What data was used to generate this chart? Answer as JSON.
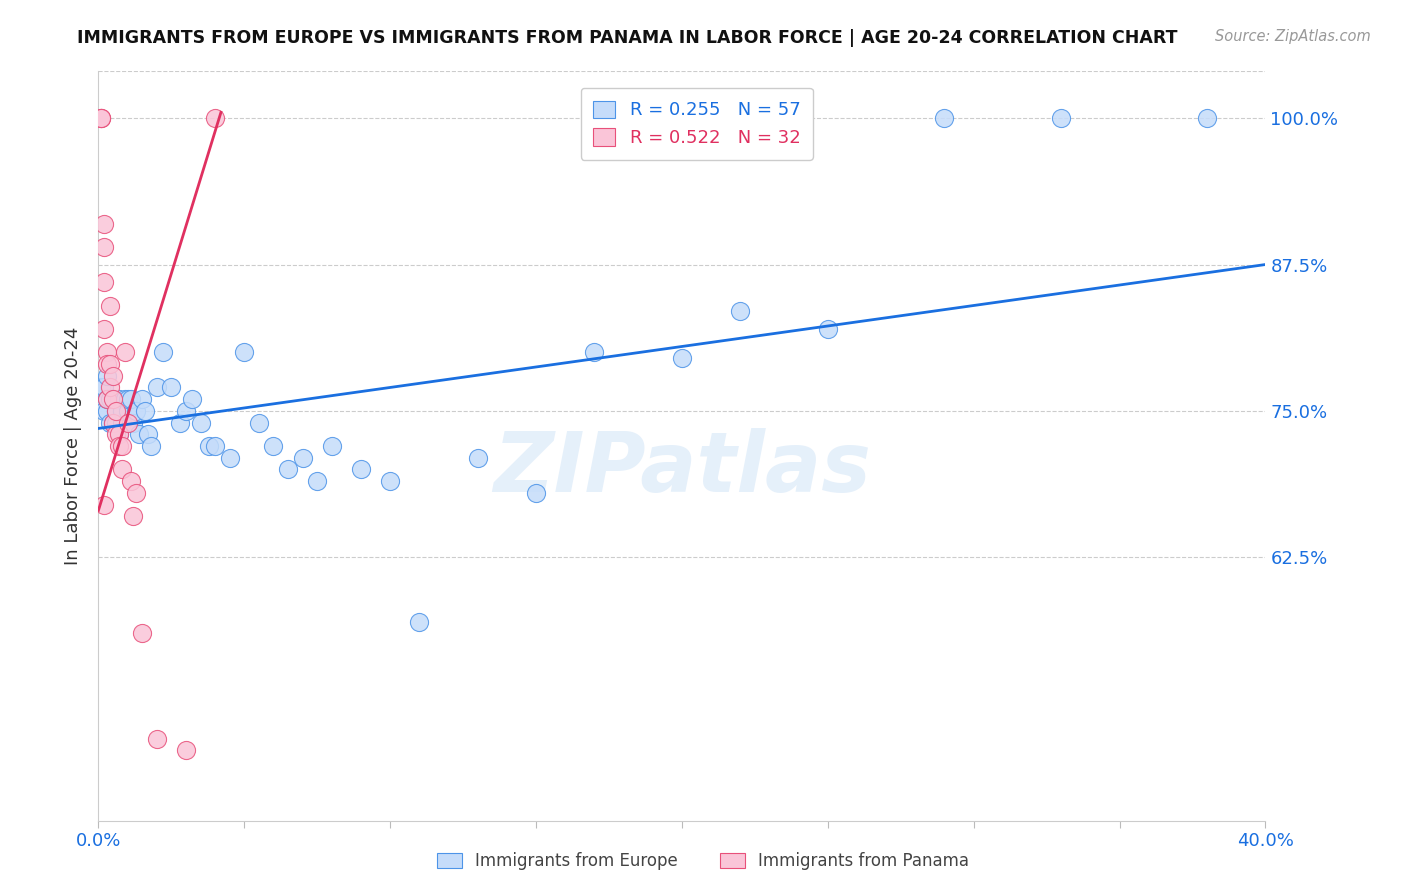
{
  "title": "IMMIGRANTS FROM EUROPE VS IMMIGRANTS FROM PANAMA IN LABOR FORCE | AGE 20-24 CORRELATION CHART",
  "source": "Source: ZipAtlas.com",
  "ylabel": "In Labor Force | Age 20-24",
  "watermark": "ZIPatlas",
  "xlim": [
    0.0,
    0.4
  ],
  "ylim": [
    0.4,
    1.04
  ],
  "yticks": [
    0.625,
    0.75,
    0.875,
    1.0
  ],
  "ytick_labels": [
    "62.5%",
    "75.0%",
    "87.5%",
    "100.0%"
  ],
  "xticks": [
    0.0,
    0.05,
    0.1,
    0.15,
    0.2,
    0.25,
    0.3,
    0.35,
    0.4
  ],
  "xtick_labels": [
    "0.0%",
    "",
    "",
    "",
    "",
    "",
    "",
    "",
    "40.0%"
  ],
  "blue_fill": "#c5dcfa",
  "pink_fill": "#fac5d8",
  "blue_edge": "#4d94e8",
  "pink_edge": "#e8507a",
  "blue_line_color": "#1a6fe0",
  "pink_line_color": "#e03060",
  "blue_R": 0.255,
  "blue_N": 57,
  "pink_R": 0.522,
  "pink_N": 32,
  "europe_x": [
    0.001,
    0.001,
    0.002,
    0.002,
    0.003,
    0.003,
    0.003,
    0.004,
    0.004,
    0.005,
    0.005,
    0.006,
    0.006,
    0.007,
    0.007,
    0.008,
    0.008,
    0.009,
    0.01,
    0.01,
    0.011,
    0.012,
    0.013,
    0.014,
    0.015,
    0.016,
    0.017,
    0.018,
    0.02,
    0.022,
    0.025,
    0.028,
    0.03,
    0.032,
    0.035,
    0.038,
    0.04,
    0.045,
    0.05,
    0.055,
    0.06,
    0.065,
    0.07,
    0.075,
    0.08,
    0.09,
    0.1,
    0.11,
    0.13,
    0.15,
    0.17,
    0.2,
    0.22,
    0.25,
    0.29,
    0.33,
    0.38
  ],
  "europe_y": [
    0.76,
    0.77,
    0.75,
    0.77,
    0.75,
    0.76,
    0.78,
    0.74,
    0.76,
    0.74,
    0.76,
    0.74,
    0.75,
    0.73,
    0.76,
    0.74,
    0.75,
    0.76,
    0.75,
    0.76,
    0.76,
    0.74,
    0.75,
    0.73,
    0.76,
    0.75,
    0.73,
    0.72,
    0.77,
    0.8,
    0.77,
    0.74,
    0.75,
    0.76,
    0.74,
    0.72,
    0.72,
    0.71,
    0.8,
    0.74,
    0.72,
    0.7,
    0.71,
    0.69,
    0.72,
    0.7,
    0.69,
    0.57,
    0.71,
    0.68,
    0.8,
    0.795,
    0.835,
    0.82,
    1.0,
    1.0,
    1.0
  ],
  "panama_x": [
    0.001,
    0.001,
    0.001,
    0.002,
    0.002,
    0.002,
    0.002,
    0.003,
    0.003,
    0.003,
    0.004,
    0.004,
    0.004,
    0.005,
    0.005,
    0.005,
    0.006,
    0.006,
    0.007,
    0.007,
    0.008,
    0.008,
    0.009,
    0.01,
    0.011,
    0.012,
    0.013,
    0.015,
    0.02,
    0.03,
    0.04,
    0.002
  ],
  "panama_y": [
    1.0,
    1.0,
    1.0,
    0.91,
    0.89,
    0.86,
    0.82,
    0.8,
    0.79,
    0.76,
    0.79,
    0.77,
    0.84,
    0.76,
    0.78,
    0.74,
    0.75,
    0.73,
    0.73,
    0.72,
    0.72,
    0.7,
    0.8,
    0.74,
    0.69,
    0.66,
    0.68,
    0.56,
    0.47,
    0.46,
    1.0,
    0.67
  ],
  "pink_line_x0": 0.0,
  "pink_line_y0": 0.665,
  "pink_line_x1": 0.042,
  "pink_line_y1": 1.005,
  "blue_line_x0": 0.0,
  "blue_line_y0": 0.735,
  "blue_line_x1": 0.4,
  "blue_line_y1": 0.875
}
